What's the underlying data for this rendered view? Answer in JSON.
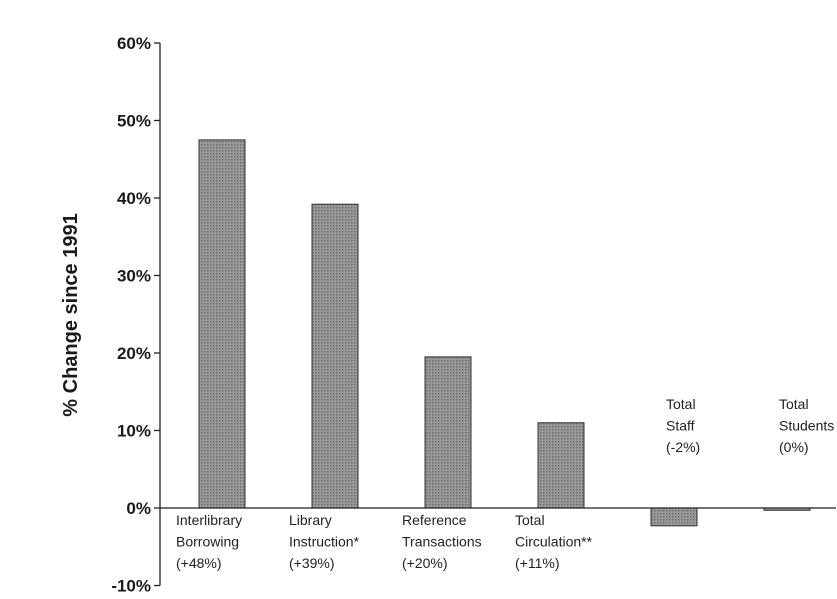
{
  "chart_data": {
    "type": "bar",
    "title": "",
    "xlabel": "",
    "ylabel": "% Change since 1991",
    "ylim": [
      -10,
      60
    ],
    "yticks": [
      "-10%",
      "0%",
      "10%",
      "20%",
      "30%",
      "40%",
      "50%",
      "60%"
    ],
    "ytick_values": [
      -10,
      0,
      10,
      20,
      30,
      40,
      50,
      60
    ],
    "grid": false,
    "bar_color": "#8c8c8c",
    "categories": [
      [
        "Interlibrary",
        "Borrowing",
        "(+48%)"
      ],
      [
        "Library",
        "Instruction*",
        "(+39%)"
      ],
      [
        "Reference",
        "Transactions",
        "(+20%)"
      ],
      [
        "Total",
        "Circulation**",
        "(+11%)"
      ],
      [
        "Total",
        "Staff",
        "(-2%)"
      ],
      [
        "Total",
        "Students",
        "(0%)"
      ]
    ],
    "values": [
      47.5,
      39.2,
      19.5,
      11,
      -2.3,
      -0.3
    ]
  }
}
